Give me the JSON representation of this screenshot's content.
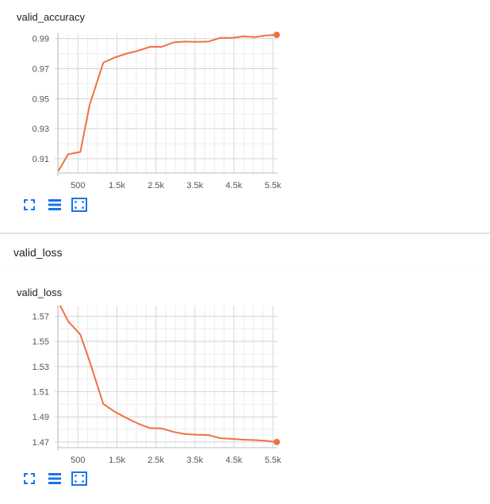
{
  "section": {
    "title": "valid_loss"
  },
  "colors": {
    "line": "#f2703f",
    "grid": "#e0e0e0",
    "tick_text": "#555555",
    "icon": "#1a73e8"
  },
  "toolbar_icons": [
    "fit-domain-icon",
    "data-table-icon",
    "expand-chart-icon"
  ],
  "chart_data": [
    {
      "type": "line",
      "title": "valid_accuracy",
      "xlabel": "",
      "ylabel": "",
      "x_ticks": [
        "500",
        "1.5k",
        "2.5k",
        "3.5k",
        "4.5k",
        "5.5k"
      ],
      "x_tick_values": [
        500,
        1500,
        2500,
        3500,
        4500,
        5500
      ],
      "y_ticks": [
        "0.91",
        "0.93",
        "0.95",
        "0.97",
        "0.99"
      ],
      "y_tick_values": [
        0.91,
        0.93,
        0.95,
        0.97,
        0.99
      ],
      "xlim": [
        -15,
        5620
      ],
      "ylim": [
        0.9005,
        0.9935
      ],
      "grid": true,
      "series": [
        {
          "x": [
            0,
            250,
            560,
            800,
            1150,
            1450,
            1750,
            2050,
            2350,
            2650,
            2950,
            3250,
            3550,
            3850,
            4150,
            4450,
            4750,
            5050,
            5300,
            5600
          ],
          "y": [
            0.902,
            0.913,
            0.9145,
            0.946,
            0.974,
            0.9775,
            0.98,
            0.982,
            0.9845,
            0.9845,
            0.9875,
            0.988,
            0.9878,
            0.988,
            0.9905,
            0.9905,
            0.9915,
            0.991,
            0.992,
            0.9925
          ]
        }
      ]
    },
    {
      "type": "line",
      "title": "valid_loss",
      "xlabel": "",
      "ylabel": "",
      "x_ticks": [
        "500",
        "1.5k",
        "2.5k",
        "3.5k",
        "4.5k",
        "5.5k"
      ],
      "x_tick_values": [
        500,
        1500,
        2500,
        3500,
        4500,
        5500
      ],
      "y_ticks": [
        "1.47",
        "1.49",
        "1.51",
        "1.53",
        "1.55",
        "1.57"
      ],
      "y_tick_values": [
        1.47,
        1.49,
        1.51,
        1.53,
        1.55,
        1.57
      ],
      "xlim": [
        -15,
        5620
      ],
      "ylim": [
        1.4655,
        1.5785
      ],
      "grid": true,
      "series": [
        {
          "x": [
            250,
            560,
            800,
            1150,
            1450,
            1750,
            2050,
            2350,
            2650,
            2950,
            3250,
            3550,
            3850,
            4150,
            4450,
            4750,
            5050,
            5300,
            5600
          ],
          "y": [
            1.566,
            1.5555,
            1.534,
            1.5003,
            1.494,
            1.489,
            1.4845,
            1.481,
            1.4808,
            1.478,
            1.4763,
            1.4758,
            1.4755,
            1.473,
            1.4725,
            1.4718,
            1.4715,
            1.471,
            1.47
          ]
        }
      ],
      "clipped_start": {
        "x": 0,
        "y": 1.581
      }
    }
  ]
}
